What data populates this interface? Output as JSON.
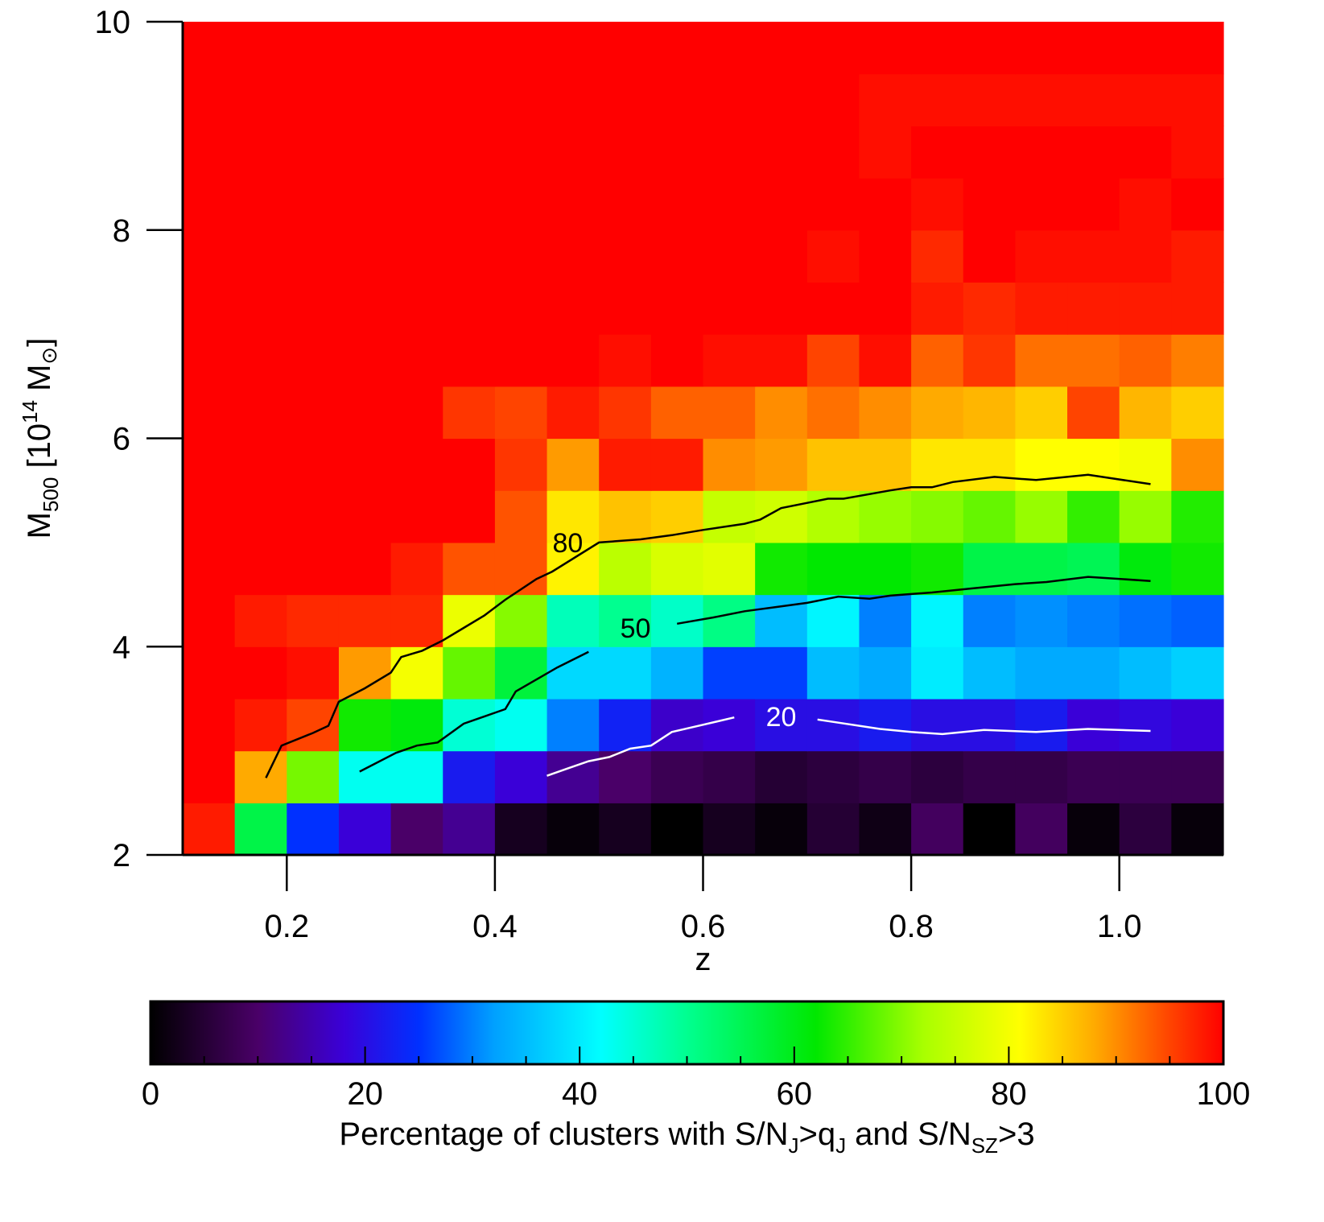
{
  "chart_data": {
    "type": "heatmap",
    "xlabel": "z",
    "ylabel": {
      "main": "M",
      "main_sub": "500",
      "unit_open": " [10",
      "unit_sup": "14",
      "unit_m": " M",
      "unit_sun": "⊙",
      "unit_close": "]"
    },
    "xlim": [
      0.1,
      1.1
    ],
    "ylim": [
      2,
      10
    ],
    "xticks": [
      0.2,
      0.4,
      0.6,
      0.8,
      1.0
    ],
    "xtick_labels": [
      "0.2",
      "0.4",
      "0.6",
      "0.8",
      "1.0"
    ],
    "yticks": [
      2,
      4,
      6,
      8,
      10
    ],
    "ytick_labels": [
      "2",
      "4",
      "6",
      "8",
      "10"
    ],
    "x_bin_edges": [
      0.1,
      0.15,
      0.2,
      0.25,
      0.3,
      0.35,
      0.4,
      0.45,
      0.5,
      0.55,
      0.6,
      0.65,
      0.7,
      0.75,
      0.8,
      0.85,
      0.9,
      0.95,
      1.0,
      1.05,
      1.1
    ],
    "y_bin_edges": [
      2.0,
      2.5,
      3.0,
      3.5,
      4.0,
      4.5,
      5.0,
      5.5,
      6.0,
      6.5,
      7.0,
      7.5,
      8.0,
      8.5,
      9.0,
      9.5,
      10.0
    ],
    "z_values": [
      [
        98,
        56,
        25,
        18,
        10,
        13,
        3,
        1,
        3,
        0,
        3,
        1,
        5,
        2,
        9,
        0,
        9,
        1,
        6,
        1
      ],
      [
        100,
        88,
        69,
        43,
        43,
        22,
        18,
        13,
        10,
        8,
        7,
        5,
        6,
        7,
        6,
        7,
        7,
        8,
        8,
        8
      ],
      [
        100,
        98,
        95,
        63,
        61,
        45,
        43,
        30,
        23,
        17,
        18,
        20,
        20,
        22,
        20,
        20,
        22,
        18,
        19,
        18
      ],
      [
        100,
        100,
        99,
        89,
        80,
        68,
        57,
        38,
        38,
        34,
        26,
        26,
        35,
        33,
        40,
        35,
        33,
        33,
        35,
        37
      ],
      [
        100,
        98,
        97,
        97,
        97,
        79,
        70,
        47,
        50,
        46,
        51,
        35,
        41,
        30,
        41,
        30,
        31,
        30,
        29,
        28
      ],
      [
        100,
        100,
        100,
        100,
        98,
        94,
        94,
        82,
        74,
        77,
        78,
        63,
        62,
        62,
        63,
        56,
        56,
        55,
        61,
        63
      ],
      [
        100,
        100,
        100,
        100,
        100,
        100,
        94,
        83,
        86,
        85,
        75,
        76,
        73,
        71,
        70,
        68,
        71,
        65,
        71,
        64
      ],
      [
        100,
        100,
        100,
        100,
        100,
        100,
        96,
        89,
        98,
        98,
        90,
        89,
        86,
        86,
        83,
        83,
        81,
        81,
        80,
        90
      ],
      [
        100,
        100,
        100,
        100,
        100,
        96,
        95,
        98,
        96,
        93,
        93,
        90,
        92,
        90,
        88,
        87,
        85,
        95,
        87,
        85
      ],
      [
        100,
        100,
        100,
        100,
        100,
        100,
        100,
        100,
        99,
        100,
        99,
        99,
        95,
        99,
        93,
        96,
        92,
        92,
        93,
        91
      ],
      [
        100,
        100,
        100,
        100,
        100,
        100,
        100,
        100,
        100,
        100,
        100,
        100,
        100,
        100,
        98,
        97,
        98,
        98,
        98,
        98
      ],
      [
        100,
        100,
        100,
        100,
        100,
        100,
        100,
        100,
        100,
        100,
        100,
        100,
        99,
        100,
        97,
        100,
        99,
        99,
        99,
        98
      ],
      [
        100,
        100,
        100,
        100,
        100,
        100,
        100,
        100,
        100,
        100,
        100,
        100,
        100,
        100,
        99,
        100,
        100,
        100,
        99,
        100
      ],
      [
        100,
        100,
        100,
        100,
        100,
        100,
        100,
        100,
        100,
        100,
        100,
        100,
        100,
        99,
        100,
        100,
        100,
        100,
        100,
        99
      ],
      [
        100,
        100,
        100,
        100,
        100,
        100,
        100,
        100,
        100,
        100,
        100,
        100,
        100,
        99,
        99,
        99,
        99,
        99,
        99,
        99
      ],
      [
        100,
        100,
        100,
        100,
        100,
        100,
        100,
        100,
        100,
        100,
        100,
        100,
        100,
        100,
        100,
        100,
        100,
        100,
        100,
        100
      ]
    ],
    "contours": [
      {
        "label": "80",
        "color": "#000000",
        "label_at": [
          0.47,
          5.0
        ],
        "points": [
          [
            0.18,
            2.74
          ],
          [
            0.195,
            3.05
          ],
          [
            0.225,
            3.17
          ],
          [
            0.24,
            3.24
          ],
          [
            0.25,
            3.47
          ],
          [
            0.275,
            3.6
          ],
          [
            0.3,
            3.75
          ],
          [
            0.31,
            3.9
          ],
          [
            0.33,
            3.96
          ],
          [
            0.35,
            4.06
          ],
          [
            0.37,
            4.18
          ],
          [
            0.39,
            4.3
          ],
          [
            0.41,
            4.45
          ],
          [
            0.44,
            4.65
          ],
          [
            0.455,
            4.72
          ],
          [
            0.5,
            5.0
          ],
          [
            0.54,
            5.03
          ],
          [
            0.57,
            5.07
          ],
          [
            0.6,
            5.12
          ],
          [
            0.64,
            5.18
          ],
          [
            0.655,
            5.22
          ],
          [
            0.675,
            5.33
          ],
          [
            0.72,
            5.42
          ],
          [
            0.735,
            5.42
          ],
          [
            0.78,
            5.5
          ],
          [
            0.8,
            5.53
          ],
          [
            0.82,
            5.53
          ],
          [
            0.84,
            5.58
          ],
          [
            0.88,
            5.63
          ],
          [
            0.92,
            5.6
          ],
          [
            0.97,
            5.65
          ],
          [
            1.03,
            5.56
          ]
        ]
      },
      {
        "label": "50",
        "color": "#000000",
        "label_at": [
          0.535,
          4.18
        ],
        "points": [
          [
            0.27,
            2.8
          ],
          [
            0.305,
            2.98
          ],
          [
            0.325,
            3.05
          ],
          [
            0.345,
            3.08
          ],
          [
            0.37,
            3.26
          ],
          [
            0.39,
            3.33
          ],
          [
            0.41,
            3.4
          ],
          [
            0.42,
            3.57
          ],
          [
            0.46,
            3.8
          ],
          [
            0.49,
            3.95
          ],
          [
            0.525,
            4.1
          ],
          [
            0.575,
            4.22
          ],
          [
            0.61,
            4.28
          ],
          [
            0.64,
            4.34
          ],
          [
            0.67,
            4.38
          ],
          [
            0.7,
            4.42
          ],
          [
            0.73,
            4.48
          ],
          [
            0.76,
            4.46
          ],
          [
            0.78,
            4.49
          ],
          [
            0.82,
            4.52
          ],
          [
            0.86,
            4.56
          ],
          [
            0.9,
            4.6
          ],
          [
            0.93,
            4.62
          ],
          [
            0.97,
            4.67
          ],
          [
            1.03,
            4.63
          ]
        ]
      },
      {
        "label": "20",
        "color": "#ffffff",
        "label_at": [
          0.675,
          3.33
        ],
        "points": [
          [
            0.45,
            2.76
          ],
          [
            0.47,
            2.83
          ],
          [
            0.49,
            2.9
          ],
          [
            0.51,
            2.94
          ],
          [
            0.53,
            3.02
          ],
          [
            0.55,
            3.05
          ],
          [
            0.57,
            3.18
          ],
          [
            0.6,
            3.25
          ],
          [
            0.63,
            3.32
          ],
          [
            0.66,
            3.34
          ],
          [
            0.71,
            3.3
          ],
          [
            0.73,
            3.27
          ],
          [
            0.77,
            3.21
          ],
          [
            0.8,
            3.18
          ],
          [
            0.83,
            3.16
          ],
          [
            0.87,
            3.2
          ],
          [
            0.92,
            3.18
          ],
          [
            0.97,
            3.21
          ],
          [
            1.03,
            3.19
          ]
        ]
      }
    ],
    "colorbar": {
      "title_parts": {
        "a": "Percentage of clusters with S/N",
        "b": "J",
        "c": ">q",
        "d": "J",
        "e": " and S/N",
        "f": "SZ",
        "g": ">3"
      },
      "range": [
        0,
        100
      ],
      "ticks": [
        0,
        20,
        40,
        60,
        80,
        100
      ],
      "tick_labels": [
        "0",
        "20",
        "40",
        "60",
        "80",
        "100"
      ],
      "minor_step": 5,
      "stops": [
        [
          0,
          "#000000"
        ],
        [
          10,
          "#4a0068"
        ],
        [
          18,
          "#3a00d8"
        ],
        [
          25,
          "#0030ff"
        ],
        [
          32,
          "#00a0ff"
        ],
        [
          42,
          "#00ffff"
        ],
        [
          50,
          "#00ff90"
        ],
        [
          62,
          "#00e800"
        ],
        [
          72,
          "#a8ff00"
        ],
        [
          81,
          "#ffff00"
        ],
        [
          88,
          "#ffaa00"
        ],
        [
          95,
          "#ff4400"
        ],
        [
          100,
          "#ff0000"
        ]
      ]
    }
  }
}
